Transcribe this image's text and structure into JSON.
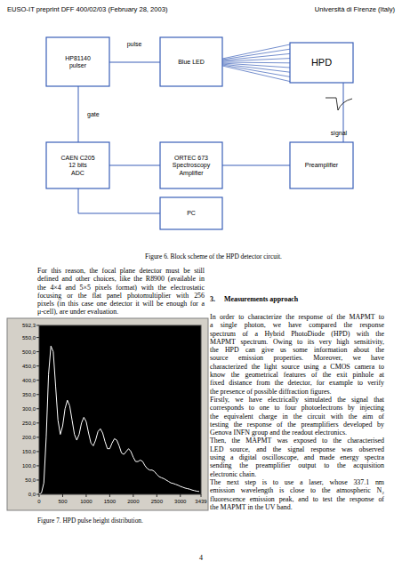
{
  "header": {
    "left": "EUSO-IT preprint DFF 400/02/03 (February 28, 2003)",
    "right": "Università di Firenze (Italy)"
  },
  "figure6": {
    "nodes": [
      {
        "label": [
          "HP81140",
          "pulser"
        ]
      },
      {
        "label": [
          "Blue LED"
        ]
      },
      {
        "label": [
          "HPD"
        ]
      },
      {
        "label": [
          "CAEN C205",
          "12 bits",
          "ADC"
        ]
      },
      {
        "label": [
          "ORTEC 673",
          "Spectroscopy",
          "Amplifier"
        ]
      },
      {
        "label": [
          "Preamplifier"
        ]
      },
      {
        "label": [
          "PC"
        ]
      }
    ],
    "labels": [
      "pulse",
      "gate",
      "signal"
    ],
    "caption": "Figure 6. Block scheme of the HPD detector circuit."
  },
  "left_text": [
    "For this reason, the focal plane detector must be still",
    "defined and other choices, like the R8900 (available in",
    "the 4×4 and 5×5 pixels format) with the electrostatic",
    "focusing or the flat panel photomultiplier with 256",
    "pixels (in this case one detector it will be enough for a",
    "μ-cell), are under evaluation."
  ],
  "chart_data": {
    "type": "line",
    "color": "#ffffff",
    "x": [
      0,
      50,
      100,
      150,
      200,
      250,
      300,
      350,
      400,
      450,
      500,
      550,
      600,
      650,
      700,
      750,
      800,
      850,
      900,
      950,
      1000,
      1050,
      1100,
      1150,
      1200,
      1250,
      1300,
      1350,
      1400,
      1450,
      1500,
      1550,
      1600,
      1650,
      1700,
      1750,
      1800,
      1850,
      1900,
      1950,
      2000,
      2050,
      2100,
      2150,
      2200,
      2250,
      2300,
      2350,
      2400,
      2450,
      2500,
      2550,
      2600,
      2650,
      2700,
      2750,
      2800,
      2850,
      2900,
      2950,
      3000,
      3050,
      3100,
      3150,
      3200,
      3250,
      3300,
      3350,
      3400
    ],
    "values": [
      0,
      5,
      40,
      200,
      420,
      520,
      500,
      380,
      260,
      210,
      240,
      300,
      330,
      310,
      260,
      210,
      190,
      210,
      250,
      270,
      255,
      215,
      180,
      170,
      190,
      220,
      230,
      215,
      185,
      160,
      160,
      180,
      195,
      190,
      170,
      145,
      140,
      150,
      160,
      150,
      130,
      115,
      115,
      120,
      115,
      100,
      90,
      85,
      85,
      80,
      70,
      62,
      58,
      55,
      50,
      45,
      40,
      38,
      35,
      32,
      28,
      25,
      22,
      20,
      18,
      15,
      13,
      11,
      10
    ],
    "xlim": [
      0,
      3439
    ],
    "ylim": [
      0,
      592.3
    ],
    "xticks": [
      0,
      500,
      1000,
      1500,
      2000,
      2500,
      3000,
      3439
    ],
    "yticks": [
      {
        "value": 0,
        "label": "0,0"
      },
      {
        "value": 50,
        "label": "50,0"
      },
      {
        "value": 100,
        "label": "100,0"
      },
      {
        "value": 150,
        "label": "150,0"
      },
      {
        "value": 200,
        "label": "200,0"
      },
      {
        "value": 250,
        "label": "250,0"
      },
      {
        "value": 300,
        "label": "300,0"
      },
      {
        "value": 350,
        "label": "350,0"
      },
      {
        "value": 400,
        "label": "400,0"
      },
      {
        "value": 450,
        "label": "450,0"
      },
      {
        "value": 500,
        "label": "500,0"
      },
      {
        "value": 550,
        "label": "550,0"
      },
      {
        "value": 592.3,
        "label": "592,3"
      }
    ]
  },
  "figure7": {
    "caption": "Figure 7. HPD pulse height distribution."
  },
  "section": {
    "number": "3.",
    "title": "Measurements approach",
    "paragraphs": [
      [
        "In order to characterize the response of the MAPMT to",
        "a single photon, we have compared the response",
        "spectrum of a Hybrid PhotoDiode (HPD) with the",
        "MAPMT spectrum. Owing to its very high sensitivity,",
        "the HPD can give us some information about the",
        "source emission properties. Moreover, we have",
        "characterized the light source using a CMOS camera to",
        "know the geometrical features of the exit pinhole at",
        "fixed distance from the detector, for example to verify",
        "the presence of possible diffraction figures."
      ],
      [
        "Firstly, we have electrically simulated the signal that",
        "corresponds to one to four photoelectrons by injecting",
        "the equivalent charge in the circuit with the aim of",
        "testing the response of the preamplifiers developed by",
        "Genova INFN group and the readout electronics."
      ],
      [
        "Then, the MAPMT was exposed to the characterised",
        "LED source, and the signal response was observed",
        "using a digital oscilloscope, and made energy spectra",
        "sending the preamplifier output to the acquisition",
        "electronic chain."
      ],
      [
        "The next step is to use a laser, whose 337.1 nm",
        "emission wavelength is close to the atmospheric N₂",
        "fluorescence emission peak, and to test the response of",
        "the MAPMT in the UV band."
      ]
    ]
  },
  "page_number": "4"
}
